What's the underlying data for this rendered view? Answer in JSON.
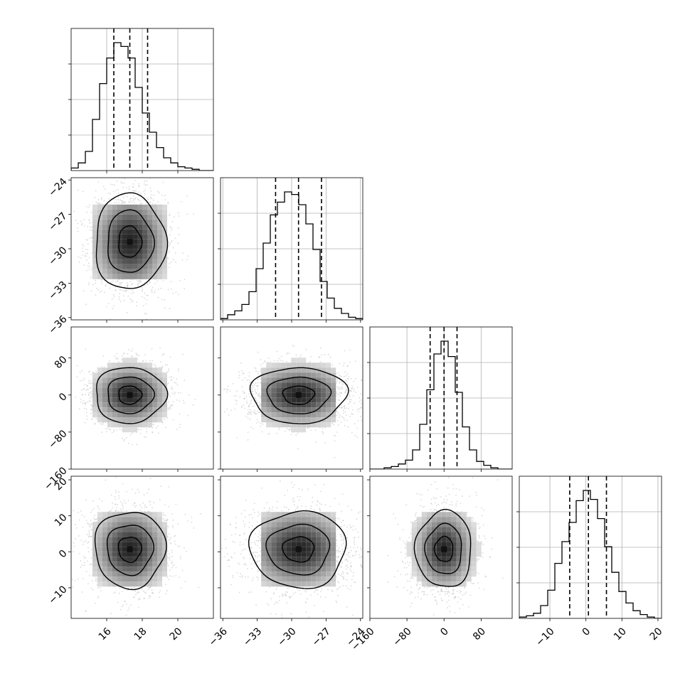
{
  "chart_data": {
    "type": "corner-plot",
    "n_params": 4,
    "ticks": [
      {
        "values": [
          16,
          18,
          20
        ],
        "labels": [
          "16",
          "18",
          "20"
        ]
      },
      {
        "values": [
          -36,
          -33,
          -30,
          -27,
          -24
        ],
        "labels": [
          "−36",
          "−33",
          "−30",
          "−27",
          "−24"
        ]
      },
      {
        "values": [
          -160,
          -80,
          0,
          80
        ],
        "labels": [
          "−160",
          "−80",
          "0",
          "80"
        ]
      },
      {
        "values": [
          -10,
          0,
          10,
          20
        ],
        "labels": [
          "−10",
          "0",
          "10",
          "20"
        ]
      }
    ],
    "ranges": [
      [
        14.0,
        22.0
      ],
      [
        -36.2,
        -23.8
      ],
      [
        -160,
        147
      ],
      [
        -18.5,
        21.0
      ]
    ],
    "parameters": [
      {
        "quantiles": [
          16.4,
          17.3,
          18.3
        ],
        "hist_edges": [
          14.0,
          14.4,
          14.8,
          15.2,
          15.6,
          16.0,
          16.4,
          16.8,
          17.2,
          17.6,
          18.0,
          18.4,
          18.8,
          19.2,
          19.6,
          20.0,
          20.4,
          20.8,
          21.2,
          21.6,
          22.0
        ],
        "hist_counts": [
          0.02,
          0.06,
          0.15,
          0.4,
          0.68,
          0.88,
          1.0,
          0.97,
          0.88,
          0.65,
          0.45,
          0.3,
          0.18,
          0.1,
          0.06,
          0.03,
          0.02,
          0.01,
          0.0,
          0.0
        ]
      },
      {
        "quantiles": [
          -31.4,
          -29.4,
          -27.4
        ],
        "hist_edges": [
          -36.2,
          -35.58,
          -34.96,
          -34.34,
          -33.72,
          -33.1,
          -32.48,
          -31.86,
          -31.24,
          -30.62,
          -30.0,
          -29.38,
          -28.76,
          -28.14,
          -27.52,
          -26.9,
          -26.28,
          -25.66,
          -25.04,
          -24.42,
          -23.8
        ],
        "hist_counts": [
          0.01,
          0.04,
          0.07,
          0.12,
          0.22,
          0.4,
          0.6,
          0.82,
          0.92,
          1.0,
          0.98,
          0.9,
          0.75,
          0.55,
          0.3,
          0.17,
          0.09,
          0.05,
          0.02,
          0.01
        ]
      },
      {
        "quantiles": [
          -30,
          0,
          28
        ],
        "hist_edges": [
          -160,
          -144.65,
          -129.3,
          -113.95,
          -98.6,
          -83.25,
          -67.9,
          -52.55,
          -37.2,
          -21.85,
          -6.5,
          8.85,
          24.2,
          39.55,
          54.9,
          70.25,
          85.6,
          100.95,
          116.3,
          131.65,
          147
        ],
        "hist_counts": [
          0.0,
          0.0,
          0.01,
          0.02,
          0.04,
          0.07,
          0.15,
          0.35,
          0.62,
          0.9,
          1.0,
          0.88,
          0.6,
          0.33,
          0.15,
          0.06,
          0.03,
          0.01,
          0.0,
          0.0
        ]
      },
      {
        "quantiles": [
          -4.5,
          0.7,
          5.7
        ],
        "hist_edges": [
          -18.5,
          -16.525,
          -14.55,
          -12.575,
          -10.6,
          -8.625,
          -6.65,
          -4.675,
          -2.7,
          -0.725,
          1.25,
          3.225,
          5.2,
          7.175,
          9.15,
          11.125,
          13.1,
          15.075,
          17.05,
          19.025,
          21.0
        ],
        "hist_counts": [
          0.01,
          0.02,
          0.04,
          0.1,
          0.22,
          0.43,
          0.6,
          0.75,
          0.92,
          1.0,
          0.93,
          0.78,
          0.56,
          0.36,
          0.21,
          0.12,
          0.06,
          0.03,
          0.01,
          0.0
        ]
      }
    ],
    "contour_levels": [
      0.39,
      0.86,
      0.99
    ],
    "grid": true,
    "quantile_line_style": "dashed"
  }
}
